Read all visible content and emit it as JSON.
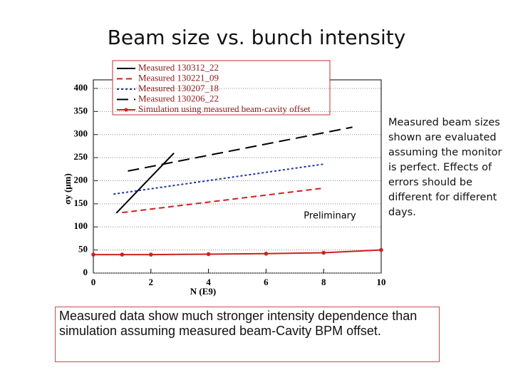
{
  "title": "Beam size vs. bunch intensity",
  "chart_data": {
    "type": "line",
    "xlabel": "N (E9)",
    "ylabel": "σy (μm)",
    "xlim": [
      0,
      10
    ],
    "xticks": [
      0,
      2,
      4,
      6,
      8,
      10
    ],
    "ylim": [
      0,
      400
    ],
    "yticks": [
      0,
      50,
      100,
      150,
      200,
      250,
      300,
      350,
      400
    ],
    "grid": true,
    "legend": "top",
    "annotation": "Preliminary",
    "series": [
      {
        "name": "Measured 130312_22",
        "color": "#000000",
        "dash": "solid",
        "x": [
          0.8,
          2.8
        ],
        "values": [
          130,
          260
        ]
      },
      {
        "name": "Measured 130221_09",
        "color": "#cc2222",
        "dash": "dashed",
        "x": [
          1,
          8
        ],
        "values": [
          131,
          184
        ]
      },
      {
        "name": "Measured 130207_18",
        "color": "#2233aa",
        "dash": "dotted",
        "x": [
          0.7,
          8
        ],
        "values": [
          171,
          236
        ]
      },
      {
        "name": "Measured 130206_22",
        "color": "#000000",
        "dash": "longdash",
        "x": [
          1.2,
          9
        ],
        "values": [
          221,
          316
        ]
      },
      {
        "name": "Simulation using measured beam-cavity offset",
        "color": "#cc2222",
        "dash": "solid",
        "marker": true,
        "x": [
          0,
          1,
          2,
          4,
          6,
          8,
          10
        ],
        "values": [
          40,
          40,
          40,
          41,
          42,
          44,
          50
        ]
      }
    ]
  },
  "side_note": "Measured beam sizes shown are evaluated assuming the monitor is perfect. Effects of errors should be different for different days.",
  "conclusion": "Measured data show much stronger intensity dependence than simulation assuming measured beam-Cavity BPM offset."
}
